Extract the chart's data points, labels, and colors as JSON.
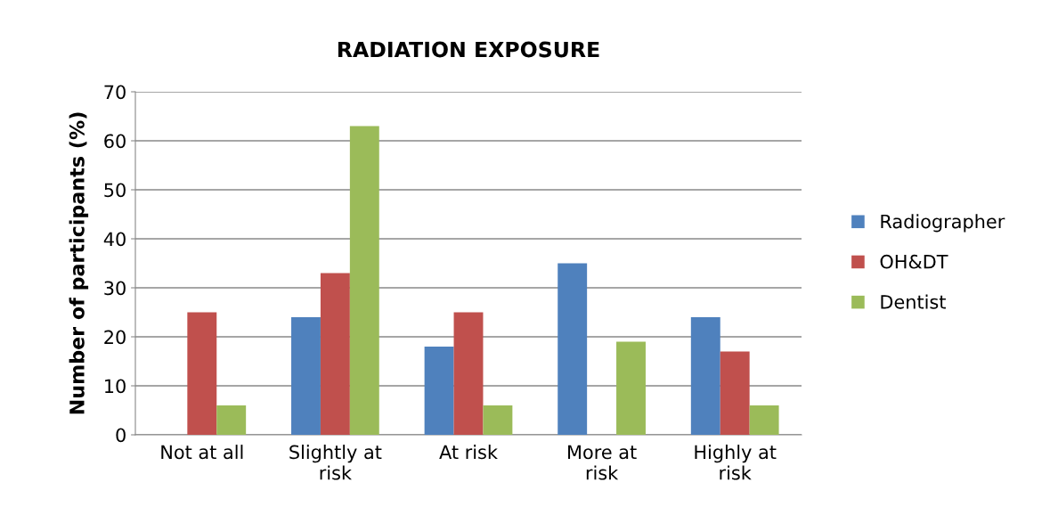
{
  "chart_data": {
    "type": "bar",
    "title": "RADIATION EXPOSURE",
    "ylabel": "Number of participants (%)",
    "categories": [
      "Not at all",
      "Slightly at risk",
      "At risk",
      "More at risk",
      "Highly at risk"
    ],
    "series": [
      {
        "name": "Radiographer",
        "color": "#4f81bd",
        "values": [
          0,
          24,
          18,
          35,
          24
        ]
      },
      {
        "name": "OH&DT",
        "color": "#c0504d",
        "values": [
          25,
          33,
          25,
          0,
          17
        ]
      },
      {
        "name": "Dentist",
        "color": "#9bbb59",
        "values": [
          6,
          63,
          6,
          19,
          6
        ]
      }
    ],
    "ylim": [
      0,
      70
    ],
    "yticks": [
      0,
      10,
      20,
      30,
      40,
      50,
      60,
      70
    ],
    "grid": "y",
    "legend": "right"
  }
}
